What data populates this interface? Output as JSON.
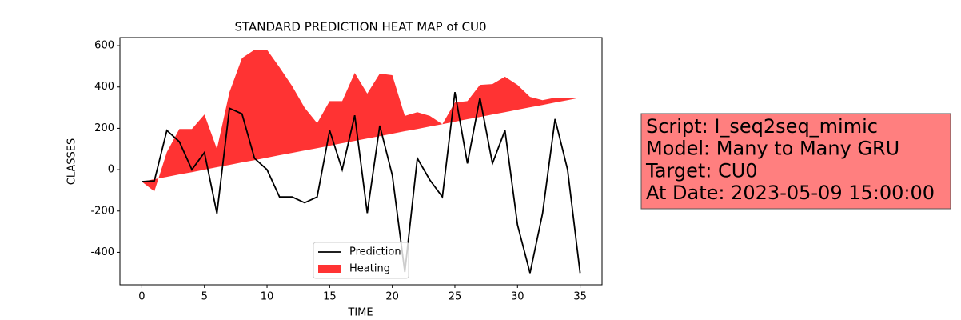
{
  "chart_data": {
    "type": "line",
    "title": "STANDARD PREDICTION HEAT MAP of CU0",
    "x_label": "TIME",
    "y_label": "CLASSES",
    "x": [
      0,
      1,
      2,
      3,
      4,
      5,
      6,
      7,
      8,
      9,
      10,
      11,
      12,
      13,
      14,
      15,
      16,
      17,
      18,
      19,
      20,
      21,
      22,
      23,
      24,
      25,
      26,
      27,
      28,
      29,
      30,
      31,
      32,
      33,
      34,
      35
    ],
    "series": [
      {
        "name": "Prediction",
        "color": "#000000",
        "values": [
          -58,
          -54,
          190,
          135,
          0,
          83,
          -212,
          297,
          270,
          55,
          0,
          -132,
          -132,
          -160,
          -132,
          190,
          0,
          263,
          -210,
          213,
          -27,
          -495,
          55,
          -50,
          -132,
          375,
          30,
          348,
          30,
          190,
          -267,
          -500,
          -212,
          245,
          0,
          -500
        ]
      },
      {
        "name": "Heating",
        "type": "area",
        "color": "#ff0000",
        "opacity": 0.8,
        "lower": [
          -58,
          -46,
          -35,
          -23,
          -12,
          0,
          12,
          23,
          35,
          46,
          58,
          70,
          81,
          93,
          104,
          116,
          128,
          139,
          151,
          162,
          174,
          186,
          197,
          209,
          220,
          232,
          244,
          255,
          267,
          278,
          290,
          302,
          313,
          325,
          336,
          348
        ],
        "values": [
          -58,
          -105,
          85,
          197,
          197,
          267,
          100,
          375,
          540,
          580,
          580,
          495,
          405,
          300,
          225,
          332,
          332,
          468,
          368,
          465,
          457,
          260,
          278,
          260,
          220,
          325,
          332,
          410,
          414,
          450,
          410,
          352,
          336,
          348,
          348,
          348
        ]
      }
    ],
    "xlim": [
      -1.75,
      36.75
    ],
    "xticks": [
      0,
      5,
      10,
      15,
      20,
      25,
      30,
      35
    ],
    "ylim": [
      -557,
      639
    ],
    "yticks": [
      -400,
      -200,
      0,
      200,
      400,
      600
    ],
    "legend": "lower center",
    "annotation": {
      "lines": [
        "Script: I_seq2seq_mimic",
        "Model: Many to Many GRU",
        "Target: CU0",
        "At Date: 2023-05-09 15:00:00"
      ],
      "color": "#ff7f7f"
    }
  }
}
